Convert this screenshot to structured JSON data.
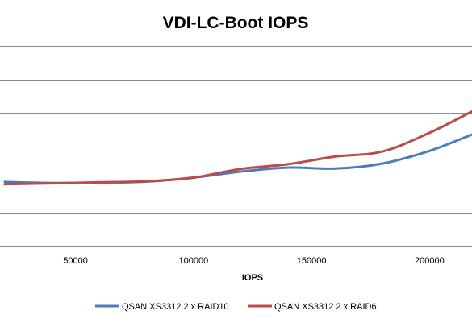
{
  "chart_data": {
    "type": "line",
    "title": "VDI-LC-Boot IOPS",
    "xlabel": "IOPS",
    "ylabel": "",
    "xlim": [
      18000,
      218000
    ],
    "ylim": [
      0,
      6
    ],
    "xticks": [
      50000,
      100000,
      150000,
      200000
    ],
    "xtick_labels": [
      "50000",
      "100000",
      "150000",
      "200000"
    ],
    "yticks": [
      0,
      1,
      2,
      3,
      4,
      5,
      6
    ],
    "grid": true,
    "legend_position": "bottom",
    "series": [
      {
        "name": "QSAN XS3312 2 x RAID10",
        "color": "#4a7ebb",
        "x": [
          20000,
          40000,
          60000,
          80000,
          100000,
          120000,
          140000,
          160000,
          180000,
          200000,
          218000
        ],
        "y": [
          1.93,
          1.9,
          1.91,
          1.94,
          2.06,
          2.24,
          2.36,
          2.33,
          2.48,
          2.86,
          3.35
        ]
      },
      {
        "name": "QSAN XS3312 2 x RAID6",
        "color": "#be4b48",
        "x": [
          20000,
          40000,
          60000,
          80000,
          100000,
          120000,
          140000,
          160000,
          180000,
          200000,
          218000
        ],
        "y": [
          1.86,
          1.89,
          1.92,
          1.95,
          2.06,
          2.32,
          2.46,
          2.69,
          2.84,
          3.4,
          4.04
        ]
      }
    ]
  }
}
